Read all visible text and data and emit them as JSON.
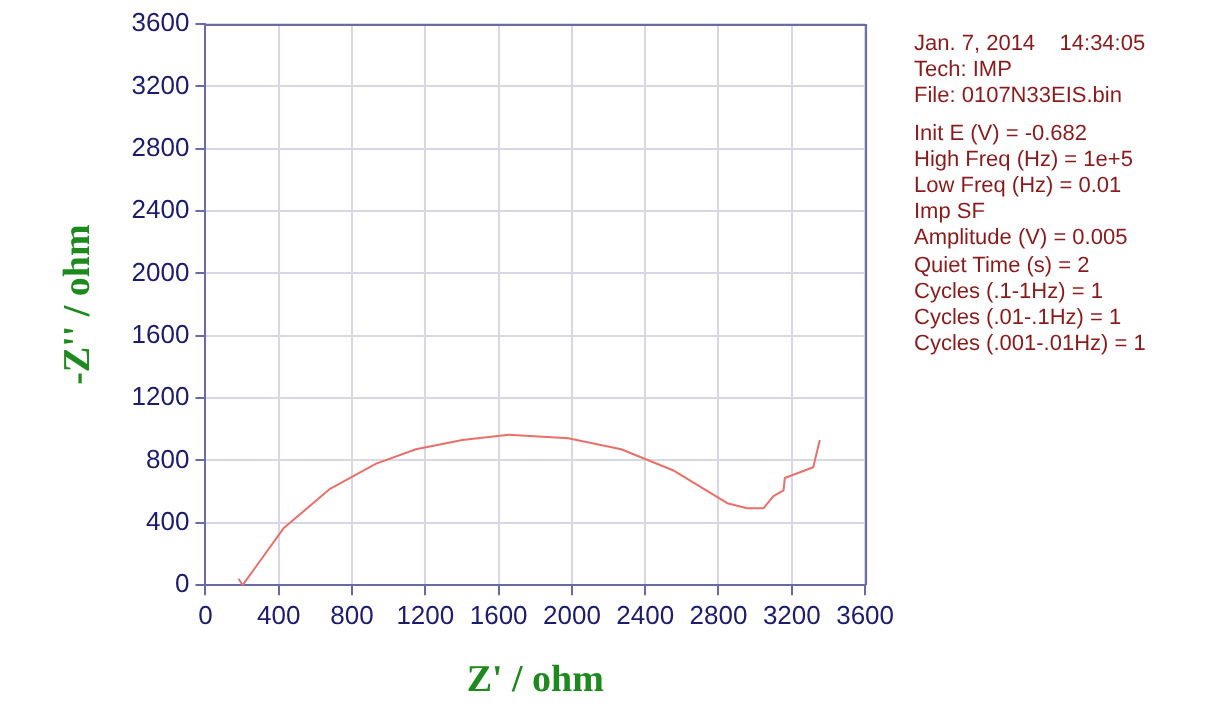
{
  "chart_data": {
    "type": "line",
    "xlabel": "Z' / ohm",
    "ylabel": "-Z'' / ohm",
    "xlim": [
      0,
      3600
    ],
    "ylim": [
      0,
      3600
    ],
    "xticks": [
      0,
      400,
      800,
      1200,
      1600,
      2000,
      2400,
      2800,
      3200,
      3600
    ],
    "yticks": [
      0,
      400,
      800,
      1200,
      1600,
      2000,
      2400,
      2800,
      3200,
      3600
    ],
    "grid": true,
    "marker": "none",
    "line_style": "solid",
    "series": [
      {
        "color": "#e8706a",
        "x": [
          181,
          203,
          426,
          680,
          932,
          1149,
          1402,
          1655,
          1980,
          2269,
          2558,
          2848,
          2956,
          3046,
          3100,
          3155,
          3162,
          3317,
          3353
        ],
        "values": [
          42,
          0,
          365,
          618,
          780,
          872,
          932,
          965,
          942,
          872,
          734,
          526,
          494,
          494,
          572,
          609,
          688,
          757,
          932
        ]
      }
    ],
    "annotations": [
      "Jan. 7, 2014    14:34:05",
      "Tech: IMP",
      "File: 0107N33EIS.bin",
      "Init E (V) = -0.682",
      "High Freq (Hz) = 1e+5",
      "Low Freq (Hz) = 0.01",
      "Imp SF",
      "Amplitude (V) = 0.005",
      "Quiet Time (s) = 2",
      "Cycles (.1-1Hz) = 1",
      "Cycles (.01-.1Hz) = 1",
      "Cycles (.001-.01Hz) = 1"
    ]
  }
}
